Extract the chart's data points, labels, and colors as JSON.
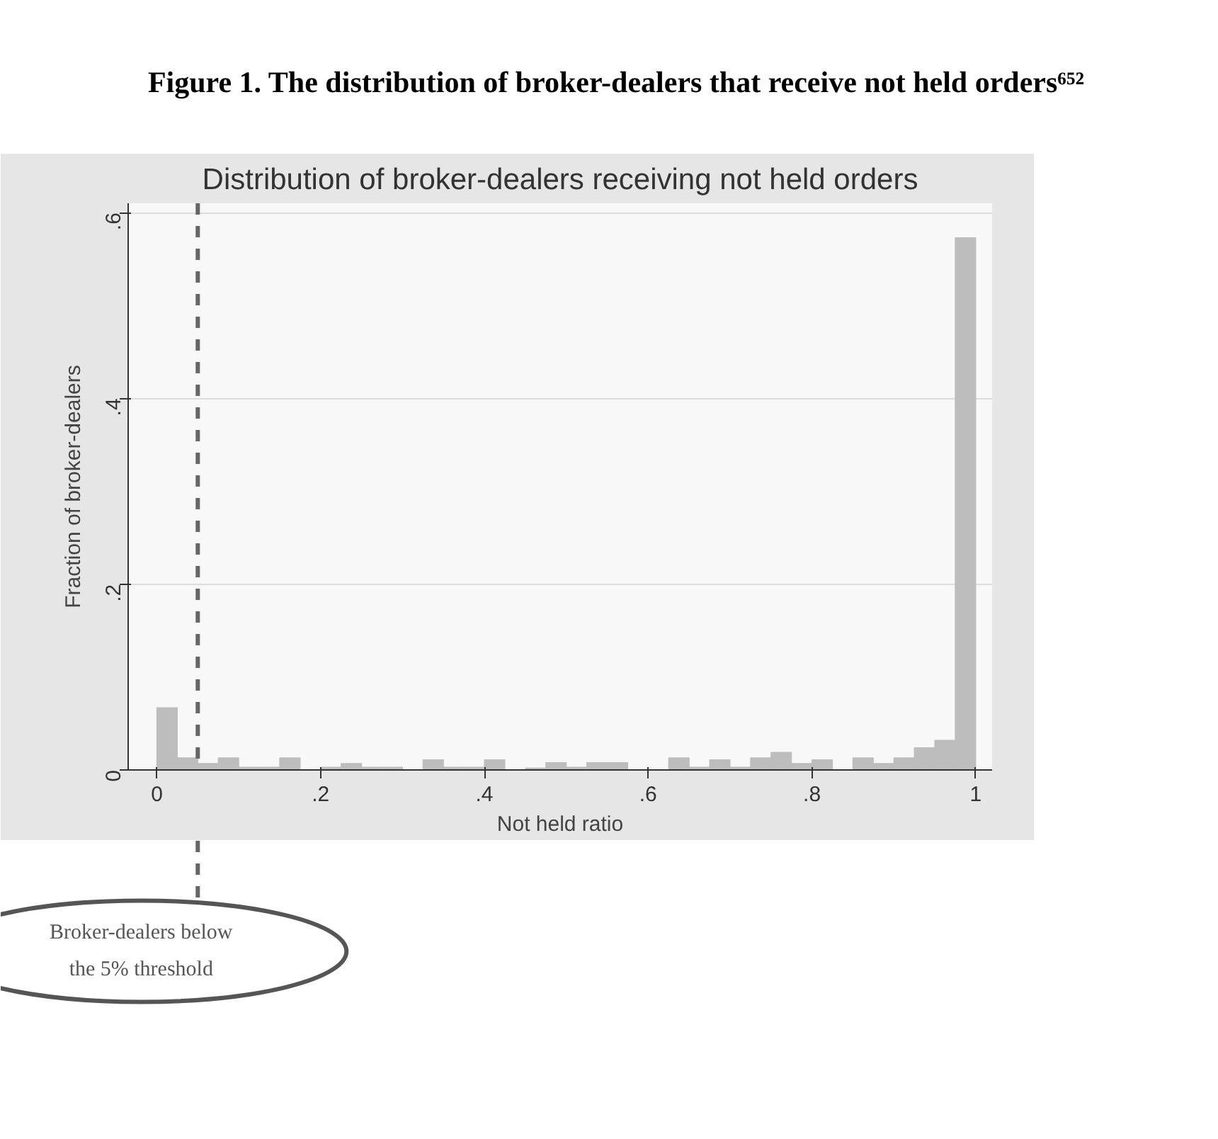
{
  "chart_data": {
    "type": "histogram",
    "title": "Figure 1. The distribution of broker-dealers that receive not held orders⁶⁵²",
    "subtitle": "Distribution of broker-dealers receiving not held orders",
    "xlabel": "Not held ratio",
    "ylabel": "Fraction of broker-dealers",
    "bins": [
      0,
      0.025,
      0.05,
      0.075,
      0.1,
      0.125,
      0.15,
      0.175,
      0.2,
      0.225,
      0.25,
      0.275,
      0.3,
      0.325,
      0.35,
      0.375,
      0.4,
      0.425,
      0.45,
      0.475,
      0.5,
      0.525,
      0.55,
      0.575,
      0.6,
      0.625,
      0.65,
      0.675,
      0.7,
      0.725,
      0.75,
      0.775,
      0.8,
      0.825,
      0.85,
      0.875,
      0.9,
      0.925,
      0.95,
      0.975,
      1
    ],
    "values": [
      0.067,
      0.013,
      0.007,
      0.013,
      0.003,
      0.003,
      0.013,
      0,
      0.003,
      0.007,
      0.003,
      0.003,
      0,
      0.011,
      0.003,
      0.003,
      0.011,
      0,
      0.002,
      0.008,
      0.003,
      0.008,
      0.008,
      0,
      0,
      0.013,
      0.003,
      0.011,
      0.003,
      0.013,
      0.019,
      0.007,
      0.011,
      0,
      0.013,
      0.007,
      0.013,
      0.024,
      0.032,
      0.573
    ],
    "color": "#bdbdbd",
    "xlim": [
      -0.035,
      1.02
    ],
    "ylim": [
      0,
      0.61
    ],
    "xticks": [
      0,
      {
        "value": 0.2,
        "label": ".2"
      },
      {
        "value": 0.4,
        "label": ".4"
      },
      {
        "value": 0.6,
        "label": ".6"
      },
      {
        "value": 0.8,
        "label": ".8"
      },
      1
    ],
    "yticks": [
      0,
      {
        "value": 0.2,
        "label": ".2"
      },
      {
        "value": 0.4,
        "label": ".4"
      },
      {
        "value": 0.6,
        "label": ".6"
      }
    ],
    "grid": "y",
    "ref_lines": [
      {
        "axis": "x",
        "value": 0.05,
        "label": "Broker-dealers below the 5% threshold",
        "line_style": "dashed",
        "color": "#666666"
      }
    ]
  }
}
